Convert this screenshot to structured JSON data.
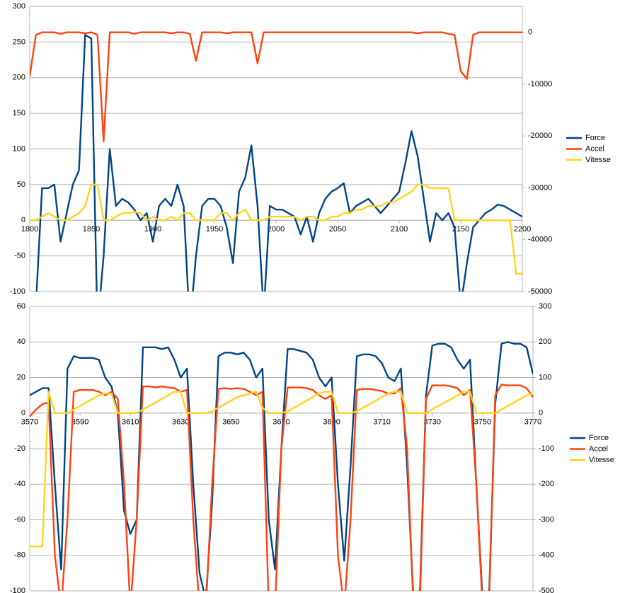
{
  "chart_data": [
    {
      "type": "line",
      "x": [
        1800,
        1805,
        1810,
        1815,
        1820,
        1825,
        1830,
        1835,
        1840,
        1845,
        1850,
        1855,
        1860,
        1865,
        1870,
        1875,
        1880,
        1885,
        1890,
        1895,
        1900,
        1905,
        1910,
        1915,
        1920,
        1925,
        1930,
        1935,
        1940,
        1945,
        1950,
        1955,
        1960,
        1965,
        1970,
        1975,
        1980,
        1985,
        1990,
        1995,
        2000,
        2005,
        2010,
        2015,
        2020,
        2025,
        2030,
        2035,
        2040,
        2045,
        2050,
        2055,
        2060,
        2065,
        2070,
        2075,
        2080,
        2085,
        2090,
        2095,
        2100,
        2105,
        2110,
        2115,
        2120,
        2125,
        2130,
        2135,
        2140,
        2145,
        2150,
        2155,
        2160,
        2165,
        2170,
        2175,
        2180,
        2185,
        2190,
        2195,
        2200
      ],
      "xlim": [
        1800,
        2200
      ],
      "xticks": [
        1800,
        1850,
        1900,
        1950,
        2000,
        2050,
        2100,
        2150,
        2200
      ],
      "ylim": [
        -100,
        300
      ],
      "yticks": [
        -100,
        -50,
        0,
        50,
        100,
        150,
        200,
        250,
        300
      ],
      "y2lim": [
        -50000,
        5000
      ],
      "y2ticks": [
        -50000,
        -40000,
        -30000,
        -20000,
        -10000,
        0
      ],
      "grid": true,
      "legend": "right",
      "series": [
        {
          "name": "Force",
          "color": "#004586",
          "values": [
            null,
            -120,
            45,
            45,
            50,
            -30,
            10,
            50,
            70,
            260,
            255,
            -150,
            -50,
            100,
            20,
            30,
            25,
            15,
            0,
            10,
            -30,
            20,
            30,
            20,
            50,
            20,
            -150,
            -50,
            20,
            30,
            30,
            20,
            -10,
            -60,
            40,
            60,
            105,
            20,
            -130,
            20,
            15,
            15,
            10,
            5,
            -20,
            5,
            -30,
            10,
            30,
            40,
            45,
            52,
            10,
            20,
            25,
            30,
            20,
            10,
            20,
            30,
            40,
            80,
            125,
            90,
            30,
            -30,
            10,
            0,
            10,
            -10,
            -120,
            -60,
            -10,
            0,
            10,
            15,
            22,
            20,
            15,
            10,
            5
          ]
        },
        {
          "name": "Accel",
          "color": "#ff420e",
          "axis": "y2",
          "values": [
            -8500,
            -500,
            0,
            0,
            0,
            -300,
            0,
            0,
            0,
            -200,
            0,
            -500,
            -21000,
            0,
            0,
            0,
            0,
            -300,
            0,
            0,
            0,
            0,
            0,
            -200,
            0,
            0,
            -300,
            -5500,
            0,
            0,
            0,
            0,
            -200,
            0,
            0,
            0,
            0,
            -6000,
            0,
            0,
            0,
            0,
            0,
            0,
            0,
            0,
            0,
            0,
            0,
            0,
            0,
            0,
            0,
            0,
            0,
            0,
            0,
            0,
            0,
            0,
            0,
            0,
            0,
            -200,
            0,
            0,
            0,
            0,
            -300,
            -500,
            -7500,
            -9000,
            -500,
            0,
            0,
            0,
            0,
            0,
            0,
            0,
            0
          ]
        },
        {
          "name": "Vitesse",
          "color": "#ffd320",
          "values": [
            0,
            0,
            5,
            10,
            5,
            0,
            0,
            5,
            10,
            20,
            50,
            50,
            0,
            0,
            5,
            10,
            10,
            12,
            10,
            0,
            5,
            0,
            0,
            5,
            0,
            10,
            10,
            0,
            0,
            0,
            0,
            10,
            10,
            0,
            10,
            15,
            0,
            0,
            0,
            5,
            5,
            5,
            5,
            5,
            0,
            5,
            5,
            0,
            0,
            5,
            5,
            10,
            10,
            15,
            15,
            20,
            20,
            20,
            25,
            25,
            30,
            35,
            40,
            50,
            50,
            45,
            45,
            45,
            45,
            0,
            0,
            0,
            0,
            0,
            0,
            0,
            0,
            0,
            0,
            -75,
            -75
          ]
        }
      ]
    },
    {
      "type": "line",
      "x": [
        3570,
        3572.5,
        3575,
        3577.5,
        3580,
        3582.5,
        3585,
        3587.5,
        3590,
        3592.5,
        3595,
        3597.5,
        3600,
        3602.5,
        3605,
        3607.5,
        3610,
        3612.5,
        3615,
        3617.5,
        3620,
        3622.5,
        3625,
        3627.5,
        3630,
        3632.5,
        3635,
        3637.5,
        3640,
        3642.5,
        3645,
        3647.5,
        3650,
        3652.5,
        3655,
        3657.5,
        3660,
        3662.5,
        3665,
        3667.5,
        3670,
        3672.5,
        3675,
        3677.5,
        3680,
        3682.5,
        3685,
        3687.5,
        3690,
        3692.5,
        3695,
        3697.5,
        3700,
        3702.5,
        3705,
        3707.5,
        3710,
        3712.5,
        3715,
        3717.5,
        3720,
        3722.5,
        3725,
        3727.5,
        3730,
        3732.5,
        3735,
        3737.5,
        3740,
        3742.5,
        3745,
        3747.5,
        3750,
        3752.5,
        3755,
        3757.5,
        3760,
        3762.5,
        3765,
        3767.5,
        3770
      ],
      "xlim": [
        3570,
        3770
      ],
      "xticks": [
        3570,
        3590,
        3610,
        3630,
        3650,
        3670,
        3690,
        3710,
        3730,
        3750,
        3770
      ],
      "ylim": [
        -100,
        60
      ],
      "yticks": [
        -100,
        -80,
        -60,
        -40,
        -20,
        0,
        20,
        40,
        60
      ],
      "y2lim": [
        -500,
        300
      ],
      "y2ticks": [
        -500,
        -400,
        -300,
        -200,
        -100,
        0,
        100,
        200,
        300
      ],
      "grid": true,
      "legend": "right",
      "series": [
        {
          "name": "Force",
          "color": "#004586",
          "values": [
            10,
            12,
            14,
            14,
            -40,
            -88,
            25,
            32,
            31,
            31,
            31,
            30,
            20,
            15,
            0,
            -55,
            -68,
            -60,
            37,
            37,
            37,
            36,
            37,
            30,
            20,
            25,
            -40,
            -90,
            -105,
            -50,
            32,
            34,
            34,
            33,
            34,
            30,
            20,
            25,
            -60,
            -88,
            -20,
            36,
            36,
            35,
            34,
            30,
            20,
            15,
            20,
            -40,
            -83,
            -30,
            32,
            33,
            33,
            32,
            28,
            20,
            18,
            25,
            -30,
            -105,
            -105,
            10,
            38,
            39,
            39,
            37,
            30,
            25,
            30,
            -40,
            -105,
            -105,
            5,
            39,
            40,
            39,
            39,
            37,
            22
          ]
        },
        {
          "name": "Accel",
          "color": "#ff420e",
          "axis": "y2",
          "values": [
            -10,
            10,
            25,
            30,
            -400,
            -550,
            -300,
            60,
            65,
            65,
            65,
            60,
            50,
            60,
            40,
            -200,
            -550,
            -300,
            75,
            75,
            72,
            75,
            72,
            70,
            60,
            65,
            -300,
            -550,
            -550,
            -200,
            68,
            70,
            68,
            70,
            68,
            60,
            50,
            60,
            -550,
            -550,
            -100,
            72,
            72,
            72,
            70,
            65,
            50,
            40,
            50,
            -400,
            -550,
            -300,
            65,
            68,
            68,
            65,
            62,
            55,
            55,
            70,
            -100,
            -550,
            -550,
            40,
            78,
            78,
            78,
            75,
            70,
            50,
            65,
            -200,
            -550,
            -550,
            50,
            80,
            78,
            78,
            78,
            70,
            45
          ]
        },
        {
          "name": "Vitesse",
          "color": "#ffd320",
          "values": [
            -75,
            -75,
            -75,
            12,
            0,
            0,
            0,
            2,
            4,
            6,
            8,
            10,
            11,
            11,
            0,
            0,
            0,
            0,
            2,
            4,
            6,
            8,
            10,
            12,
            12,
            0,
            0,
            0,
            0,
            1,
            3,
            5,
            7,
            9,
            10,
            11,
            12,
            3,
            0,
            0,
            0,
            1,
            3,
            5,
            7,
            9,
            11,
            12,
            12,
            0,
            0,
            0,
            1,
            3,
            5,
            7,
            9,
            11,
            12,
            12,
            0,
            0,
            0,
            0,
            2,
            4,
            6,
            8,
            10,
            12,
            12,
            0,
            0,
            0,
            0,
            2,
            4,
            6,
            8,
            10,
            11
          ]
        }
      ]
    }
  ]
}
